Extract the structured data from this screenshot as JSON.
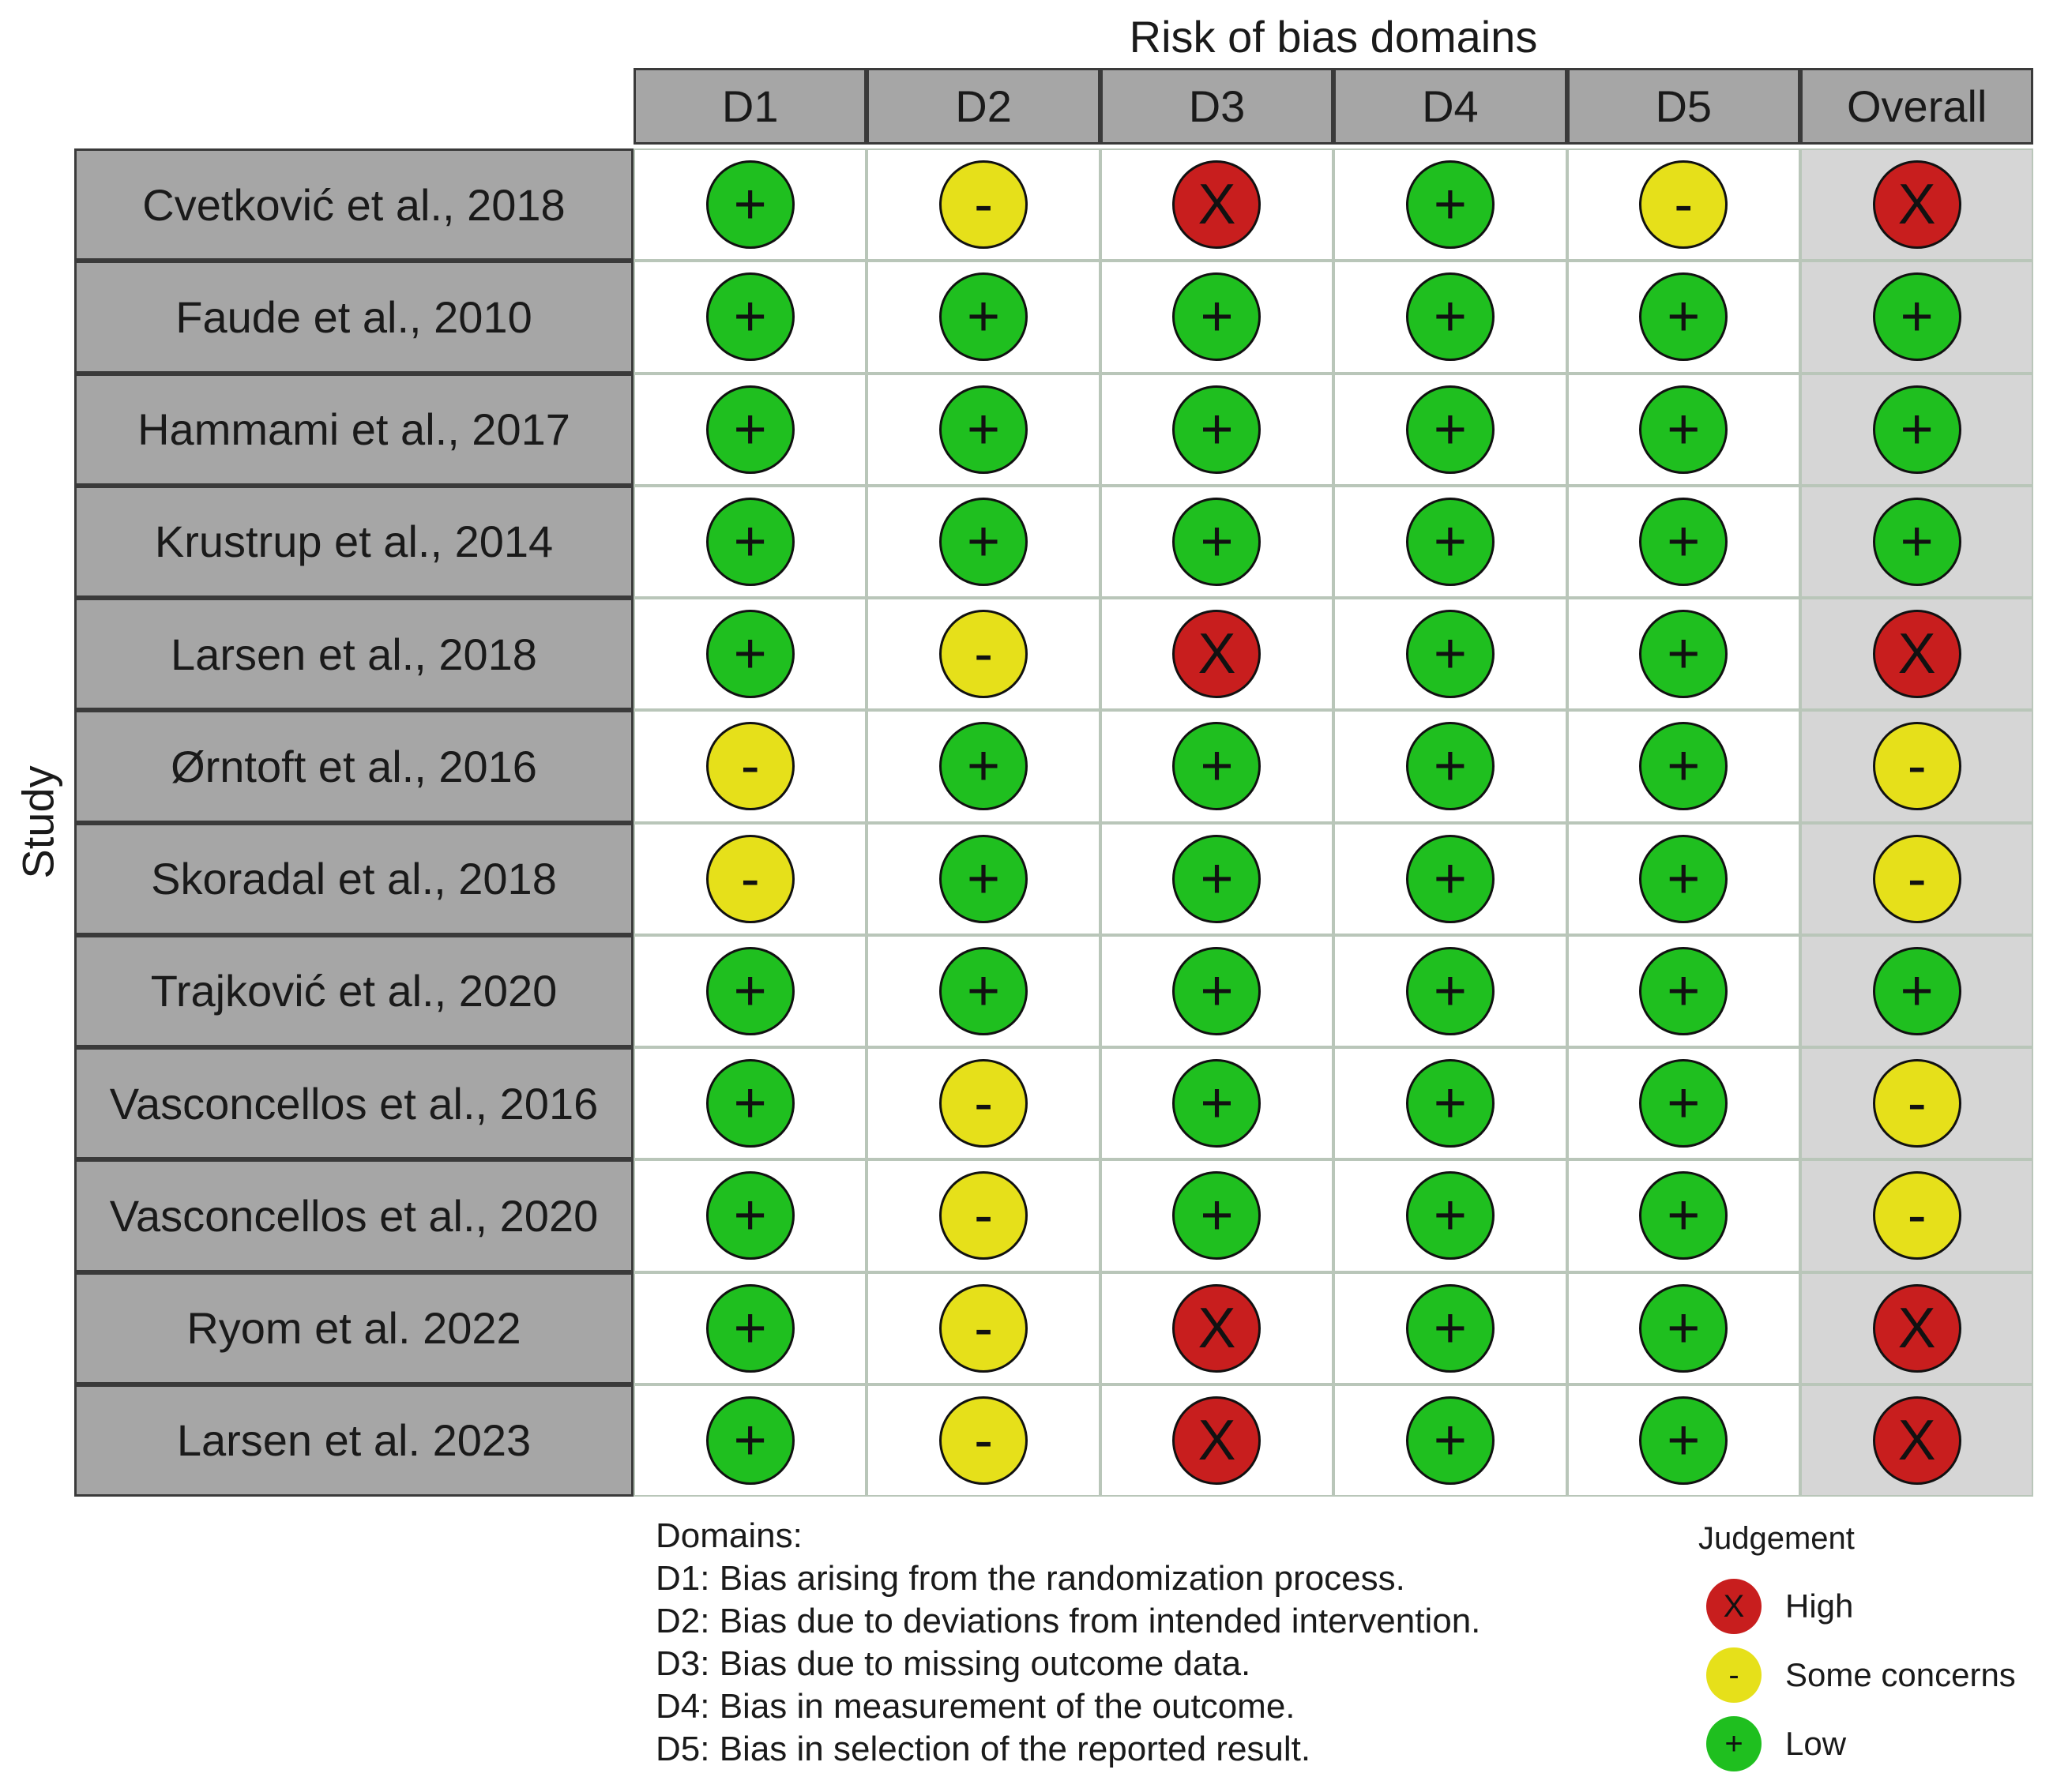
{
  "chart_data": {
    "type": "table",
    "title": "Risk of bias domains",
    "ylabel": "Study",
    "columns": [
      "D1",
      "D2",
      "D3",
      "D4",
      "D5",
      "Overall"
    ],
    "studies": [
      "Cvetković et al., 2018",
      "Faude et al., 2010",
      "Hammami et al., 2017",
      "Krustrup et al., 2014",
      "Larsen et al., 2018",
      "Ørntoft et al., 2016",
      "Skoradal et al., 2018",
      "Trajković et al., 2020",
      "Vasconcellos et al., 2016",
      "Vasconcellos et al., 2020",
      "Ryom et al. 2022",
      "Larsen et al. 2023"
    ],
    "judgements": [
      [
        "Low",
        "Some concerns",
        "High",
        "Low",
        "Some concerns",
        "High"
      ],
      [
        "Low",
        "Low",
        "Low",
        "Low",
        "Low",
        "Low"
      ],
      [
        "Low",
        "Low",
        "Low",
        "Low",
        "Low",
        "Low"
      ],
      [
        "Low",
        "Low",
        "Low",
        "Low",
        "Low",
        "Low"
      ],
      [
        "Low",
        "Some concerns",
        "High",
        "Low",
        "Low",
        "High"
      ],
      [
        "Some concerns",
        "Low",
        "Low",
        "Low",
        "Low",
        "Some concerns"
      ],
      [
        "Some concerns",
        "Low",
        "Low",
        "Low",
        "Low",
        "Some concerns"
      ],
      [
        "Low",
        "Low",
        "Low",
        "Low",
        "Low",
        "Low"
      ],
      [
        "Low",
        "Some concerns",
        "Low",
        "Low",
        "Low",
        "Some concerns"
      ],
      [
        "Low",
        "Some concerns",
        "Low",
        "Low",
        "Low",
        "Some concerns"
      ],
      [
        "Low",
        "Some concerns",
        "High",
        "Low",
        "Low",
        "High"
      ],
      [
        "Low",
        "Some concerns",
        "High",
        "Low",
        "Low",
        "High"
      ]
    ],
    "domains_heading": "Domains:",
    "domain_descriptions": [
      "D1: Bias arising from the randomization process.",
      "D2: Bias due to deviations from intended intervention.",
      "D3: Bias due to missing outcome data.",
      "D4: Bias in measurement of the outcome.",
      "D5: Bias in selection of the reported result."
    ],
    "legend_title": "Judgement",
    "legend": [
      {
        "label": "High",
        "symbol": "X",
        "color": "#c81e1e"
      },
      {
        "label": "Some concerns",
        "symbol": "-",
        "color": "#e6e01a"
      },
      {
        "label": "Low",
        "symbol": "+",
        "color": "#1fbf1f"
      }
    ]
  }
}
